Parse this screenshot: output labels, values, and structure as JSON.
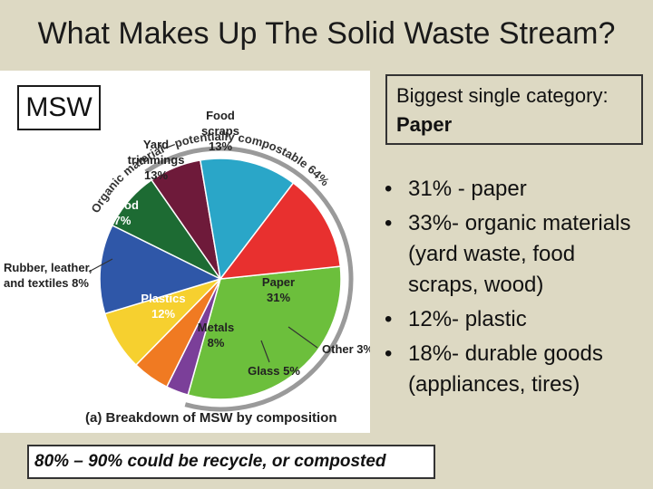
{
  "slide": {
    "title": "What Makes Up The Solid Waste Stream?",
    "msw_label": "MSW",
    "callout_line1": "Biggest single category:",
    "callout_line2": "Paper",
    "bullets": [
      "31% - paper",
      "33%- organic materials (yard waste, food scraps, wood)",
      "12%- plastic",
      "18%- durable goods (appliances, tires)"
    ],
    "footer": "80% – 90% could be recycle, or composted"
  },
  "chart_data": {
    "type": "pie",
    "caption": "(a) Breakdown of MSW by composition",
    "arc_label": "Organic material—potentially compostable 64%",
    "slices": [
      {
        "name": "Paper",
        "value": 31,
        "label": "31%",
        "color": "#6cbf3c"
      },
      {
        "name": "Other",
        "value": 3,
        "label": "3%",
        "color": "#7b3f99"
      },
      {
        "name": "Glass",
        "value": 5,
        "label": "5%",
        "color": "#f07a22"
      },
      {
        "name": "Metals",
        "value": 8,
        "label": "8%",
        "color": "#f6d02f"
      },
      {
        "name": "Plastics",
        "value": 12,
        "label": "12%",
        "color": "#2f57a8"
      },
      {
        "name": "Rubber, leather, and textiles",
        "value": 8,
        "label": "8%",
        "color": "#1d6b33"
      },
      {
        "name": "Wood",
        "value": 7,
        "label": "7%",
        "color": "#6e1a3a"
      },
      {
        "name": "Yard trimmings",
        "value": 13,
        "label": "13%",
        "color": "#2aa6c8"
      },
      {
        "name": "Food scraps",
        "value": 13,
        "label": "13%",
        "color": "#e8302f"
      }
    ],
    "start_slice": "Paper",
    "direction": "clockwise"
  }
}
